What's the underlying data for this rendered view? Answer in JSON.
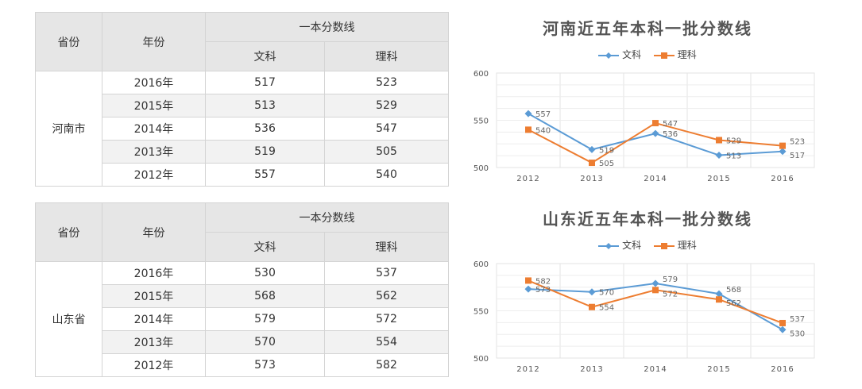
{
  "tables": [
    {
      "header": {
        "province": "省份",
        "year": "年份",
        "group": "一本分数线",
        "wen": "文科",
        "li": "理科"
      },
      "province": "河南市",
      "rows": [
        {
          "year": "2016年",
          "wen": "517",
          "li": "523"
        },
        {
          "year": "2015年",
          "wen": "513",
          "li": "529"
        },
        {
          "year": "2014年",
          "wen": "536",
          "li": "547"
        },
        {
          "year": "2013年",
          "wen": "519",
          "li": "505"
        },
        {
          "year": "2012年",
          "wen": "557",
          "li": "540"
        }
      ]
    },
    {
      "header": {
        "province": "省份",
        "year": "年份",
        "group": "一本分数线",
        "wen": "文科",
        "li": "理科"
      },
      "province": "山东省",
      "rows": [
        {
          "year": "2016年",
          "wen": "530",
          "li": "537"
        },
        {
          "year": "2015年",
          "wen": "568",
          "li": "562"
        },
        {
          "year": "2014年",
          "wen": "579",
          "li": "572"
        },
        {
          "year": "2013年",
          "wen": "570",
          "li": "554"
        },
        {
          "year": "2012年",
          "wen": "573",
          "li": "582"
        }
      ]
    }
  ],
  "colors": {
    "wen": "#5b9bd5",
    "li": "#ed7d31"
  },
  "chart_data": [
    {
      "type": "line",
      "title": "河南近五年本科一批分数线",
      "categories": [
        "2012",
        "2013",
        "2014",
        "2015",
        "2016"
      ],
      "series": [
        {
          "name": "文科",
          "values": [
            557,
            519,
            536,
            513,
            517
          ]
        },
        {
          "name": "理科",
          "values": [
            540,
            505,
            547,
            529,
            523
          ]
        }
      ],
      "ylim": [
        500,
        600
      ],
      "yticks": [
        "500",
        "550",
        "600"
      ],
      "grid": true,
      "legend": "top"
    },
    {
      "type": "line",
      "title": "山东近五年本科一批分数线",
      "categories": [
        "2012",
        "2013",
        "2014",
        "2015",
        "2016"
      ],
      "series": [
        {
          "name": "文科",
          "values": [
            573,
            570,
            579,
            568,
            530
          ]
        },
        {
          "name": "理科",
          "values": [
            582,
            554,
            572,
            562,
            537
          ]
        }
      ],
      "ylim": [
        500,
        600
      ],
      "yticks": [
        "500",
        "550",
        "600"
      ],
      "grid": true,
      "legend": "top"
    }
  ]
}
